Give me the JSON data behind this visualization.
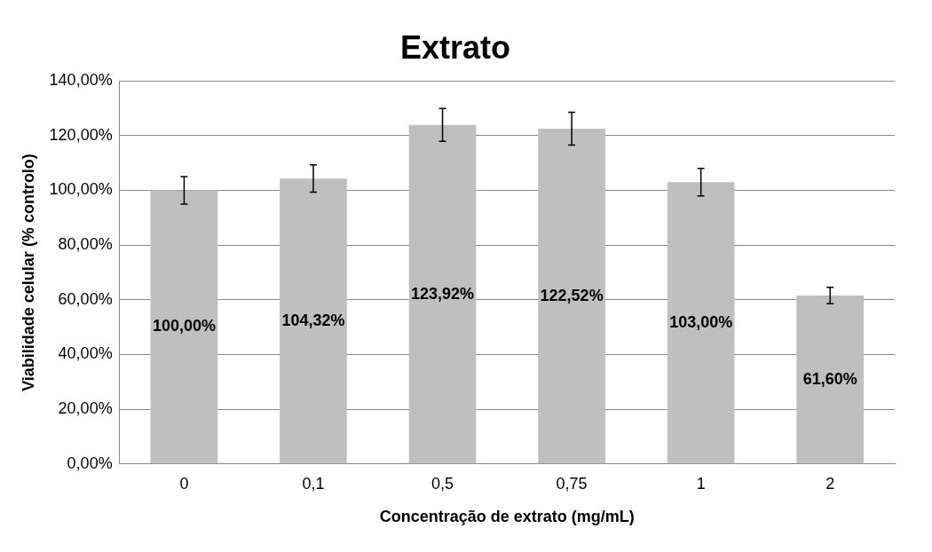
{
  "chart_data": {
    "type": "bar",
    "title": "Extrato",
    "xlabel": "Concentração de extrato (mg/mL)",
    "ylabel": "Viabilidade celular (% controlo)",
    "categories": [
      "0",
      "0,1",
      "0,5",
      "0,75",
      "1",
      "2"
    ],
    "values": [
      100.0,
      104.32,
      123.92,
      122.52,
      103.0,
      61.6
    ],
    "errors": [
      5,
      5,
      6,
      6,
      5,
      3
    ],
    "value_labels": [
      "100,00%",
      "104,32%",
      "123,92%",
      "122,52%",
      "103,00%",
      "61,60%"
    ],
    "color": "#bfbfbf",
    "ylim": [
      0,
      140
    ],
    "yticks": [
      {
        "value": 0,
        "label": "0,00%"
      },
      {
        "value": 20,
        "label": "20,00%"
      },
      {
        "value": 40,
        "label": "40,00%"
      },
      {
        "value": 60,
        "label": "60,00%"
      },
      {
        "value": 80,
        "label": "80,00%"
      },
      {
        "value": 100,
        "label": "100,00%"
      },
      {
        "value": 120,
        "label": "120,00%"
      },
      {
        "value": 140,
        "label": "140,00%"
      }
    ],
    "grid": "y"
  }
}
